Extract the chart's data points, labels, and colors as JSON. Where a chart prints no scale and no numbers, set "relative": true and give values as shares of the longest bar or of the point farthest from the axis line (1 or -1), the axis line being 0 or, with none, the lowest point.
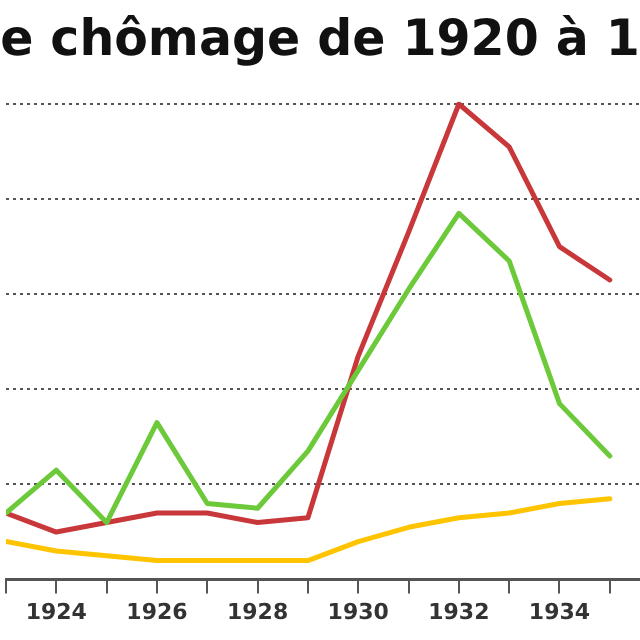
{
  "chart_data": {
    "type": "line",
    "title": "e chômage de 1920 à 1",
    "relative": true,
    "grid": "y",
    "legend": false,
    "marker": "none",
    "line_style": "solid",
    "x": [
      1923,
      1924,
      1925,
      1926,
      1927,
      1928,
      1929,
      1930,
      1931,
      1932,
      1933,
      1934,
      1935
    ],
    "xlim": [
      1923,
      1935.6
    ],
    "xticks": [
      {
        "value": 1923,
        "label": null
      },
      1924,
      {
        "value": 1925,
        "label": null
      },
      1926,
      {
        "value": 1927,
        "label": null
      },
      1928,
      {
        "value": 1929,
        "label": null
      },
      1930,
      {
        "value": 1931,
        "label": null
      },
      1932,
      {
        "value": 1933,
        "label": null
      },
      1934,
      {
        "value": 1935,
        "label": null
      }
    ],
    "series": [
      {
        "color": "#6cc93a",
        "values": [
          0.14,
          0.23,
          0.12,
          0.33,
          0.16,
          0.15,
          0.27,
          0.44,
          0.61,
          0.77,
          0.67,
          0.37,
          0.26
        ]
      },
      {
        "color": "#c8373a",
        "values": [
          0.14,
          0.1,
          0.12,
          0.14,
          0.14,
          0.12,
          0.13,
          0.47,
          0.73,
          1,
          0.91,
          0.7,
          0.63
        ]
      },
      {
        "color": "#ffc400",
        "values": [
          0.08,
          0.06,
          0.05,
          0.04,
          0.04,
          0.04,
          0.04,
          0.08,
          0.11,
          0.13,
          0.14,
          0.16,
          0.17
        ]
      }
    ]
  }
}
